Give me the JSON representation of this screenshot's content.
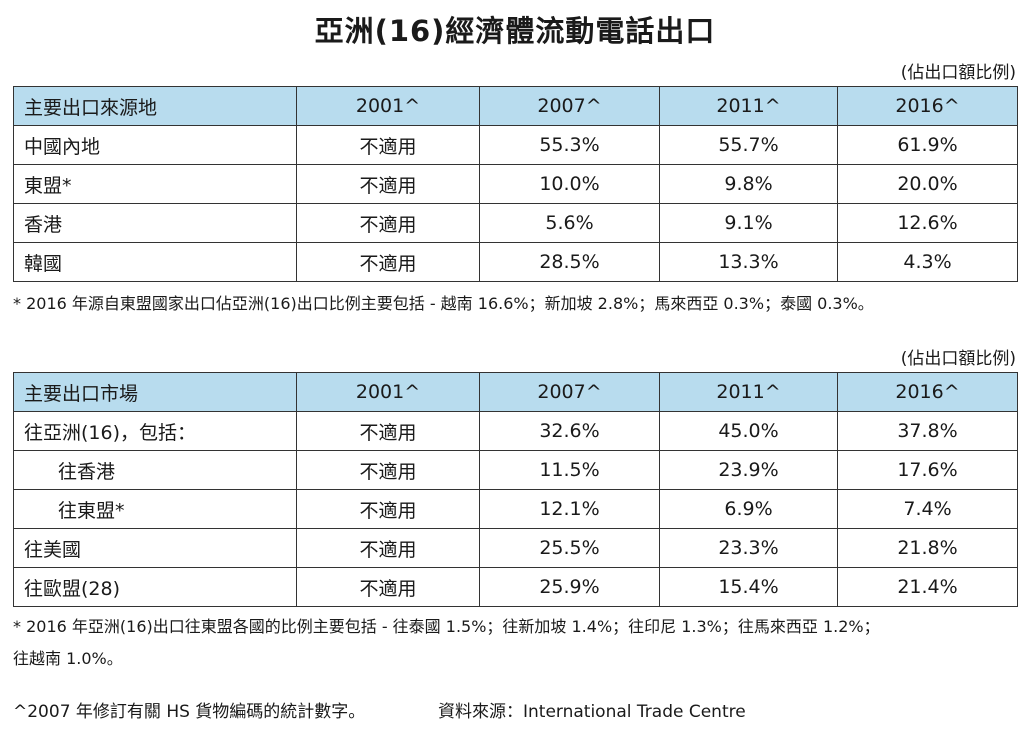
{
  "title": "亞洲(16)經濟體流動電話出口",
  "unit_label": "(佔出口額比例)",
  "table1": {
    "headers": [
      "主要出口來源地",
      "2001^",
      "2007^",
      "2011^",
      "2016^"
    ],
    "rows": [
      {
        "label": "中國內地",
        "values": [
          "不適用",
          "55.3%",
          "55.7%",
          "61.9%"
        ]
      },
      {
        "label": "東盟*",
        "values": [
          "不適用",
          "10.0%",
          "9.8%",
          "20.0%"
        ]
      },
      {
        "label": "香港",
        "values": [
          "不適用",
          "5.6%",
          "9.1%",
          "12.6%"
        ]
      },
      {
        "label": "韓國",
        "values": [
          "不適用",
          "28.5%",
          "13.3%",
          "4.3%"
        ]
      }
    ],
    "footnote": "* 2016 年源自東盟國家出口佔亞洲(16)出口比例主要包括 - 越南 16.6%；新加坡 2.8%；馬來西亞 0.3%；泰國 0.3%。"
  },
  "table2": {
    "headers": [
      "主要出口市場",
      "2001^",
      "2007^",
      "2011^",
      "2016^"
    ],
    "rows": [
      {
        "label": "往亞洲(16)，包括：",
        "values": [
          "不適用",
          "32.6%",
          "45.0%",
          "37.8%"
        ]
      },
      {
        "label": "往香港",
        "values": [
          "不適用",
          "11.5%",
          "23.9%",
          "17.6%"
        ]
      },
      {
        "label": "往東盟*",
        "values": [
          "不適用",
          "12.1%",
          "6.9%",
          "7.4%"
        ]
      },
      {
        "label": "往美國",
        "values": [
          "不適用",
          "25.5%",
          "23.3%",
          "21.8%"
        ]
      },
      {
        "label": "往歐盟(28)",
        "values": [
          "不適用",
          "25.9%",
          "15.4%",
          "21.4%"
        ]
      }
    ],
    "footnote_line1": "* 2016 年亞洲(16)出口往東盟各國的比例主要包括 - 往泰國 1.5%；往新加坡 1.4%；往印尼 1.3%；往馬來西亞 1.2%；",
    "footnote_line2": "往越南 1.0%。"
  },
  "bottom_note": "^2007 年修訂有關 HS 貨物編碼的統計數字。",
  "source_note": "資料來源：International Trade Centre"
}
